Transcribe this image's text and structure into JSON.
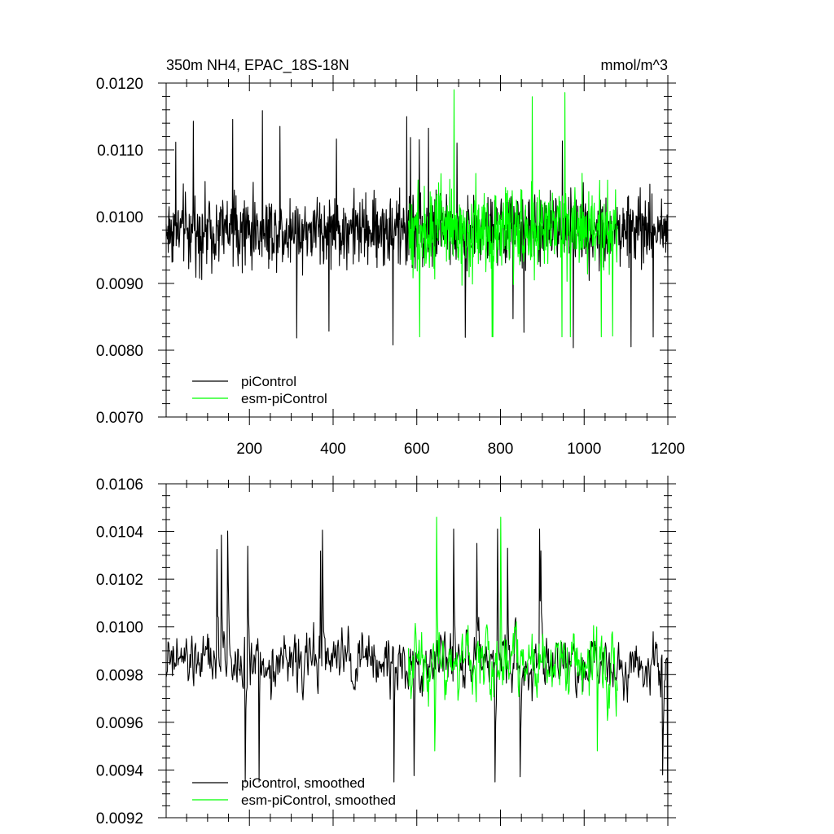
{
  "chart_data": [
    {
      "type": "line",
      "title": "350m NH4, EPAC_18S-18N",
      "units": "mmol/m^3",
      "xlabel": "",
      "ylabel": "",
      "xlim": [
        1,
        1200
      ],
      "ylim": [
        0.007,
        0.012
      ],
      "xticks": [
        "200",
        "400",
        "600",
        "800",
        "1000",
        "1200"
      ],
      "xtick_values": [
        200,
        400,
        600,
        800,
        1000,
        1200
      ],
      "yticks": [
        "0.0070",
        "0.0080",
        "0.0090",
        "0.0100",
        "0.0110",
        "0.0120"
      ],
      "ytick_values": [
        0.007,
        0.008,
        0.009,
        0.01,
        0.011,
        0.012
      ],
      "legend_position": "bottom-left",
      "series": [
        {
          "name": "piControl",
          "color": "#000000",
          "x_range": [
            1,
            1200
          ],
          "mean": 0.0098,
          "spread": 0.0005,
          "min": 0.00795,
          "max": 0.01182
        },
        {
          "name": "esm-piControl",
          "color": "#00ff00",
          "x_range": [
            580,
            1080
          ],
          "mean": 0.0098,
          "spread": 0.0006,
          "min": 0.0082,
          "max": 0.0119
        }
      ]
    },
    {
      "type": "line",
      "title": "",
      "xlabel": "",
      "ylabel": "",
      "xlim": [
        1,
        1200
      ],
      "ylim": [
        0.0092,
        0.0106
      ],
      "yticks": [
        "0.0092",
        "0.0094",
        "0.0096",
        "0.0098",
        "0.0100",
        "0.0102",
        "0.0104",
        "0.0106"
      ],
      "ytick_values": [
        0.0092,
        0.0094,
        0.0096,
        0.0098,
        0.01,
        0.0102,
        0.0104,
        0.0106
      ],
      "legend_position": "bottom-left",
      "series": [
        {
          "name": "piControl, smoothed",
          "color": "#000000",
          "x_range": [
            1,
            1200
          ],
          "mean": 0.00985,
          "spread": 0.00018,
          "min": 0.00935,
          "max": 0.01041
        },
        {
          "name": "esm-piControl, smoothed",
          "color": "#00ff00",
          "x_range": [
            580,
            1080
          ],
          "mean": 0.00985,
          "spread": 0.00022,
          "min": 0.00948,
          "max": 0.01046
        }
      ]
    }
  ]
}
